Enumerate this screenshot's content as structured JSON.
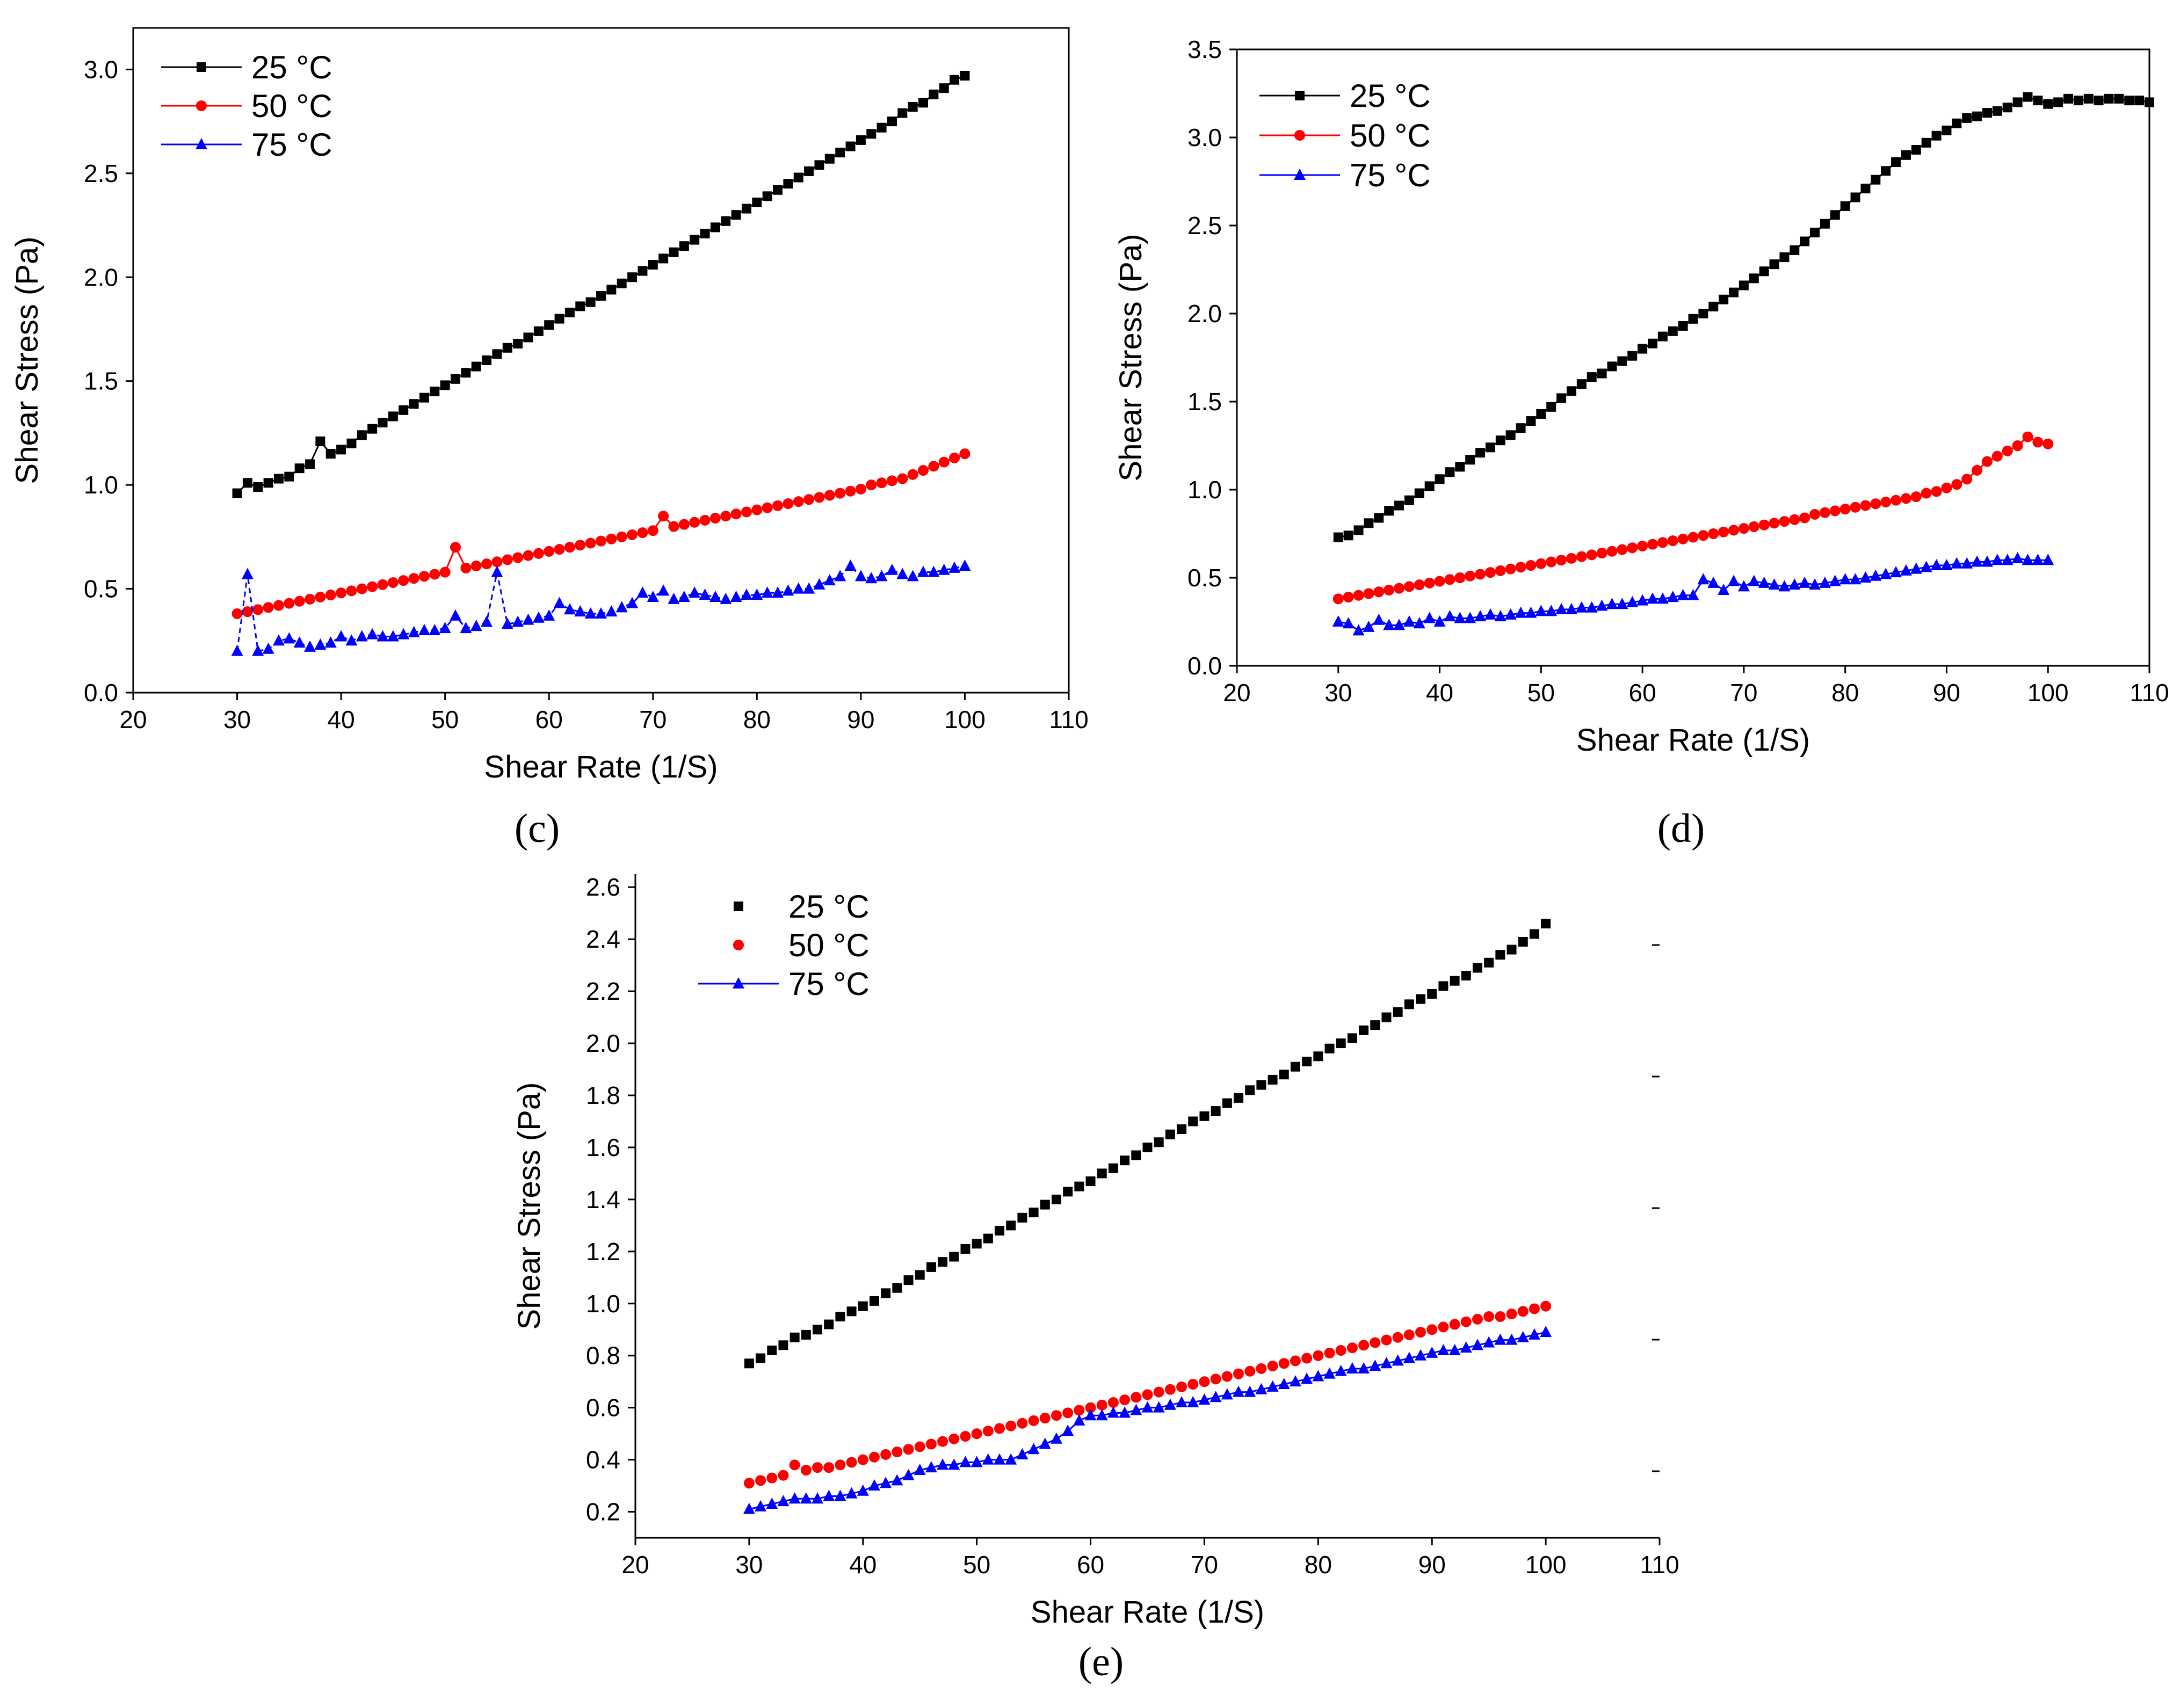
{
  "colors": {
    "black": "#000000",
    "red": "#ff0000",
    "blue": "#0000ff"
  },
  "chart_data": [
    {
      "id": "c",
      "type": "line",
      "panel_label": "(c)",
      "xlabel": "Shear Rate (1/S)",
      "ylabel": "Shear Stress (Pa)",
      "xlim": [
        20,
        110
      ],
      "ylim": [
        0.0,
        3.2
      ],
      "xticks": [
        "20",
        "30",
        "40",
        "50",
        "60",
        "70",
        "80",
        "90",
        "100",
        "110"
      ],
      "yticks": [
        "0.0",
        "0.5",
        "1.0",
        "1.5",
        "2.0",
        "2.5",
        "3.0"
      ],
      "legend_position": "top-left",
      "series": [
        {
          "name": "25 °C",
          "color": "#000000",
          "marker": "square",
          "connect": "solid",
          "x_start": 30,
          "x_step": 1,
          "y": [
            0.96,
            1.01,
            0.99,
            1.01,
            1.03,
            1.04,
            1.08,
            1.1,
            1.21,
            1.15,
            1.17,
            1.2,
            1.24,
            1.27,
            1.3,
            1.33,
            1.36,
            1.39,
            1.42,
            1.45,
            1.48,
            1.51,
            1.54,
            1.57,
            1.6,
            1.63,
            1.66,
            1.68,
            1.71,
            1.74,
            1.77,
            1.8,
            1.83,
            1.86,
            1.88,
            1.91,
            1.94,
            1.97,
            2.0,
            2.03,
            2.06,
            2.09,
            2.12,
            2.15,
            2.18,
            2.21,
            2.24,
            2.27,
            2.3,
            2.33,
            2.36,
            2.39,
            2.42,
            2.45,
            2.48,
            2.51,
            2.54,
            2.57,
            2.6,
            2.63,
            2.66,
            2.69,
            2.72,
            2.75,
            2.79,
            2.82,
            2.84,
            2.88,
            2.91,
            2.95,
            2.97
          ]
        },
        {
          "name": "50 °C",
          "color": "#ff0000",
          "marker": "circle",
          "connect": "solid",
          "x_start": 30,
          "x_step": 1,
          "y": [
            0.38,
            0.39,
            0.4,
            0.41,
            0.42,
            0.43,
            0.44,
            0.45,
            0.46,
            0.47,
            0.48,
            0.49,
            0.5,
            0.51,
            0.52,
            0.53,
            0.54,
            0.55,
            0.56,
            0.57,
            0.58,
            0.7,
            0.6,
            0.61,
            0.62,
            0.63,
            0.64,
            0.65,
            0.66,
            0.67,
            0.68,
            0.69,
            0.7,
            0.71,
            0.72,
            0.73,
            0.74,
            0.75,
            0.76,
            0.77,
            0.78,
            0.85,
            0.8,
            0.81,
            0.82,
            0.83,
            0.84,
            0.85,
            0.86,
            0.87,
            0.88,
            0.89,
            0.9,
            0.91,
            0.92,
            0.93,
            0.94,
            0.95,
            0.96,
            0.97,
            0.98,
            1.0,
            1.01,
            1.02,
            1.03,
            1.05,
            1.07,
            1.09,
            1.11,
            1.13,
            1.15
          ]
        },
        {
          "name": "75 °C",
          "color": "#0000ff",
          "marker": "triangle",
          "connect": "dashed",
          "x_start": 30,
          "x_step": 1,
          "y": [
            0.2,
            0.57,
            0.2,
            0.21,
            0.25,
            0.26,
            0.24,
            0.22,
            0.23,
            0.24,
            0.27,
            0.25,
            0.27,
            0.28,
            0.27,
            0.27,
            0.28,
            0.29,
            0.3,
            0.3,
            0.31,
            0.37,
            0.31,
            0.32,
            0.34,
            0.58,
            0.33,
            0.34,
            0.35,
            0.36,
            0.37,
            0.43,
            0.4,
            0.39,
            0.38,
            0.38,
            0.39,
            0.41,
            0.43,
            0.48,
            0.46,
            0.49,
            0.45,
            0.46,
            0.48,
            0.47,
            0.46,
            0.45,
            0.46,
            0.47,
            0.47,
            0.48,
            0.48,
            0.49,
            0.5,
            0.5,
            0.52,
            0.54,
            0.56,
            0.61,
            0.56,
            0.55,
            0.56,
            0.59,
            0.57,
            0.56,
            0.58,
            0.58,
            0.59,
            0.6,
            0.61
          ]
        }
      ]
    },
    {
      "id": "d",
      "type": "line",
      "panel_label": "(d)",
      "xlabel": "Shear Rate (1/S)",
      "ylabel": "Shear Stress (Pa)",
      "xlim": [
        20,
        110
      ],
      "ylim": [
        0.0,
        3.5
      ],
      "xticks": [
        "20",
        "30",
        "40",
        "50",
        "60",
        "70",
        "80",
        "90",
        "100",
        "110"
      ],
      "yticks": [
        "0.0",
        "0.5",
        "1.0",
        "1.5",
        "2.0",
        "2.5",
        "3.0",
        "3.5"
      ],
      "legend_position": "top-left",
      "series": [
        {
          "name": "25 °C",
          "color": "#000000",
          "marker": "square",
          "connect": "solid",
          "x_start": 30,
          "x_step": 1,
          "y": [
            0.73,
            0.74,
            0.77,
            0.81,
            0.84,
            0.88,
            0.91,
            0.94,
            0.98,
            1.02,
            1.06,
            1.1,
            1.13,
            1.17,
            1.21,
            1.24,
            1.28,
            1.31,
            1.35,
            1.39,
            1.43,
            1.47,
            1.52,
            1.56,
            1.6,
            1.64,
            1.66,
            1.7,
            1.73,
            1.76,
            1.8,
            1.83,
            1.87,
            1.9,
            1.93,
            1.97,
            2.0,
            2.04,
            2.08,
            2.12,
            2.16,
            2.2,
            2.24,
            2.28,
            2.32,
            2.36,
            2.41,
            2.46,
            2.51,
            2.56,
            2.61,
            2.66,
            2.71,
            2.76,
            2.81,
            2.86,
            2.9,
            2.93,
            2.97,
            3.01,
            3.04,
            3.08,
            3.11,
            3.12,
            3.14,
            3.15,
            3.17,
            3.2,
            3.23,
            3.21,
            3.19,
            3.2,
            3.22,
            3.21,
            3.22,
            3.21,
            3.22,
            3.22,
            3.21,
            3.21,
            3.2
          ]
        },
        {
          "name": "50 °C",
          "color": "#ff0000",
          "marker": "circle",
          "connect": "solid",
          "x_start": 30,
          "x_step": 1,
          "y": [
            0.38,
            0.39,
            0.4,
            0.41,
            0.42,
            0.43,
            0.44,
            0.45,
            0.46,
            0.47,
            0.48,
            0.49,
            0.5,
            0.51,
            0.52,
            0.53,
            0.54,
            0.55,
            0.56,
            0.57,
            0.58,
            0.59,
            0.6,
            0.61,
            0.62,
            0.63,
            0.64,
            0.65,
            0.66,
            0.67,
            0.68,
            0.69,
            0.7,
            0.71,
            0.72,
            0.73,
            0.74,
            0.75,
            0.76,
            0.77,
            0.78,
            0.79,
            0.8,
            0.81,
            0.82,
            0.83,
            0.84,
            0.86,
            0.87,
            0.88,
            0.89,
            0.9,
            0.91,
            0.92,
            0.93,
            0.94,
            0.95,
            0.96,
            0.98,
            0.99,
            1.01,
            1.03,
            1.06,
            1.11,
            1.16,
            1.19,
            1.22,
            1.25,
            1.3,
            1.27,
            1.26
          ]
        },
        {
          "name": "75 °C",
          "color": "#0000ff",
          "marker": "triangle",
          "connect": "solid",
          "x_start": 30,
          "x_step": 1,
          "y": [
            0.25,
            0.24,
            0.2,
            0.22,
            0.26,
            0.23,
            0.23,
            0.25,
            0.24,
            0.27,
            0.25,
            0.28,
            0.27,
            0.27,
            0.28,
            0.29,
            0.28,
            0.29,
            0.3,
            0.3,
            0.31,
            0.31,
            0.32,
            0.32,
            0.33,
            0.33,
            0.34,
            0.35,
            0.35,
            0.36,
            0.37,
            0.38,
            0.38,
            0.39,
            0.4,
            0.4,
            0.49,
            0.47,
            0.43,
            0.48,
            0.45,
            0.48,
            0.47,
            0.46,
            0.45,
            0.46,
            0.47,
            0.46,
            0.47,
            0.48,
            0.49,
            0.49,
            0.5,
            0.51,
            0.52,
            0.53,
            0.54,
            0.55,
            0.56,
            0.57,
            0.57,
            0.58,
            0.58,
            0.59,
            0.59,
            0.6,
            0.6,
            0.61,
            0.6,
            0.6,
            0.6
          ]
        }
      ]
    },
    {
      "id": "e",
      "type": "scatter",
      "panel_label": "(e)",
      "xlabel": "Shear Rate (1/S)",
      "ylabel": "Shear Stress (Pa)",
      "xlim": [
        20,
        110
      ],
      "ylim": [
        0.1,
        2.65
      ],
      "xticks": [
        "20",
        "30",
        "40",
        "50",
        "60",
        "70",
        "80",
        "90",
        "100",
        "110"
      ],
      "yticks": [
        "0.2",
        "0.4",
        "0.6",
        "0.8",
        "1.0",
        "1.2",
        "1.4",
        "1.6",
        "1.8",
        "2.0",
        "2.2",
        "2.4",
        "2.6"
      ],
      "legend_position": "top-left",
      "series": [
        {
          "name": "25 °C",
          "color": "#000000",
          "marker": "square",
          "connect": "none",
          "x_start": 30,
          "x_step": 1,
          "y": [
            0.77,
            0.79,
            0.82,
            0.84,
            0.87,
            0.88,
            0.9,
            0.92,
            0.95,
            0.97,
            0.99,
            1.01,
            1.04,
            1.06,
            1.09,
            1.11,
            1.14,
            1.16,
            1.18,
            1.21,
            1.23,
            1.25,
            1.28,
            1.3,
            1.33,
            1.35,
            1.38,
            1.4,
            1.43,
            1.45,
            1.47,
            1.5,
            1.52,
            1.55,
            1.57,
            1.6,
            1.62,
            1.65,
            1.67,
            1.7,
            1.72,
            1.74,
            1.77,
            1.79,
            1.82,
            1.84,
            1.86,
            1.88,
            1.91,
            1.93,
            1.95,
            1.98,
            2.0,
            2.02,
            2.05,
            2.07,
            2.1,
            2.12,
            2.15,
            2.17,
            2.19,
            2.22,
            2.24,
            2.26,
            2.29,
            2.31,
            2.34,
            2.36,
            2.39,
            2.42,
            2.46
          ]
        },
        {
          "name": "50 °C",
          "color": "#ff0000",
          "marker": "circle",
          "connect": "none",
          "x_start": 30,
          "x_step": 1,
          "y": [
            0.31,
            0.32,
            0.33,
            0.34,
            0.38,
            0.36,
            0.37,
            0.37,
            0.38,
            0.39,
            0.4,
            0.41,
            0.42,
            0.43,
            0.44,
            0.45,
            0.46,
            0.47,
            0.48,
            0.49,
            0.5,
            0.51,
            0.52,
            0.53,
            0.54,
            0.55,
            0.56,
            0.57,
            0.58,
            0.59,
            0.6,
            0.61,
            0.62,
            0.63,
            0.64,
            0.65,
            0.66,
            0.67,
            0.68,
            0.69,
            0.7,
            0.71,
            0.72,
            0.73,
            0.74,
            0.75,
            0.76,
            0.77,
            0.78,
            0.79,
            0.8,
            0.81,
            0.82,
            0.83,
            0.84,
            0.85,
            0.86,
            0.87,
            0.88,
            0.89,
            0.9,
            0.91,
            0.92,
            0.93,
            0.94,
            0.95,
            0.95,
            0.96,
            0.97,
            0.98,
            0.99
          ]
        },
        {
          "name": "75 °C",
          "color": "#0000ff",
          "marker": "triangle",
          "connect": "solid",
          "x_start": 30,
          "x_step": 1,
          "y": [
            0.21,
            0.22,
            0.23,
            0.24,
            0.25,
            0.25,
            0.25,
            0.26,
            0.26,
            0.27,
            0.28,
            0.3,
            0.31,
            0.32,
            0.34,
            0.36,
            0.37,
            0.38,
            0.38,
            0.39,
            0.39,
            0.4,
            0.4,
            0.4,
            0.42,
            0.44,
            0.46,
            0.48,
            0.51,
            0.55,
            0.57,
            0.57,
            0.58,
            0.58,
            0.59,
            0.6,
            0.6,
            0.61,
            0.62,
            0.62,
            0.63,
            0.64,
            0.65,
            0.66,
            0.66,
            0.67,
            0.68,
            0.69,
            0.7,
            0.71,
            0.72,
            0.73,
            0.74,
            0.75,
            0.75,
            0.76,
            0.77,
            0.78,
            0.79,
            0.8,
            0.81,
            0.82,
            0.82,
            0.83,
            0.84,
            0.85,
            0.86,
            0.86,
            0.87,
            0.88,
            0.89
          ]
        }
      ]
    }
  ]
}
